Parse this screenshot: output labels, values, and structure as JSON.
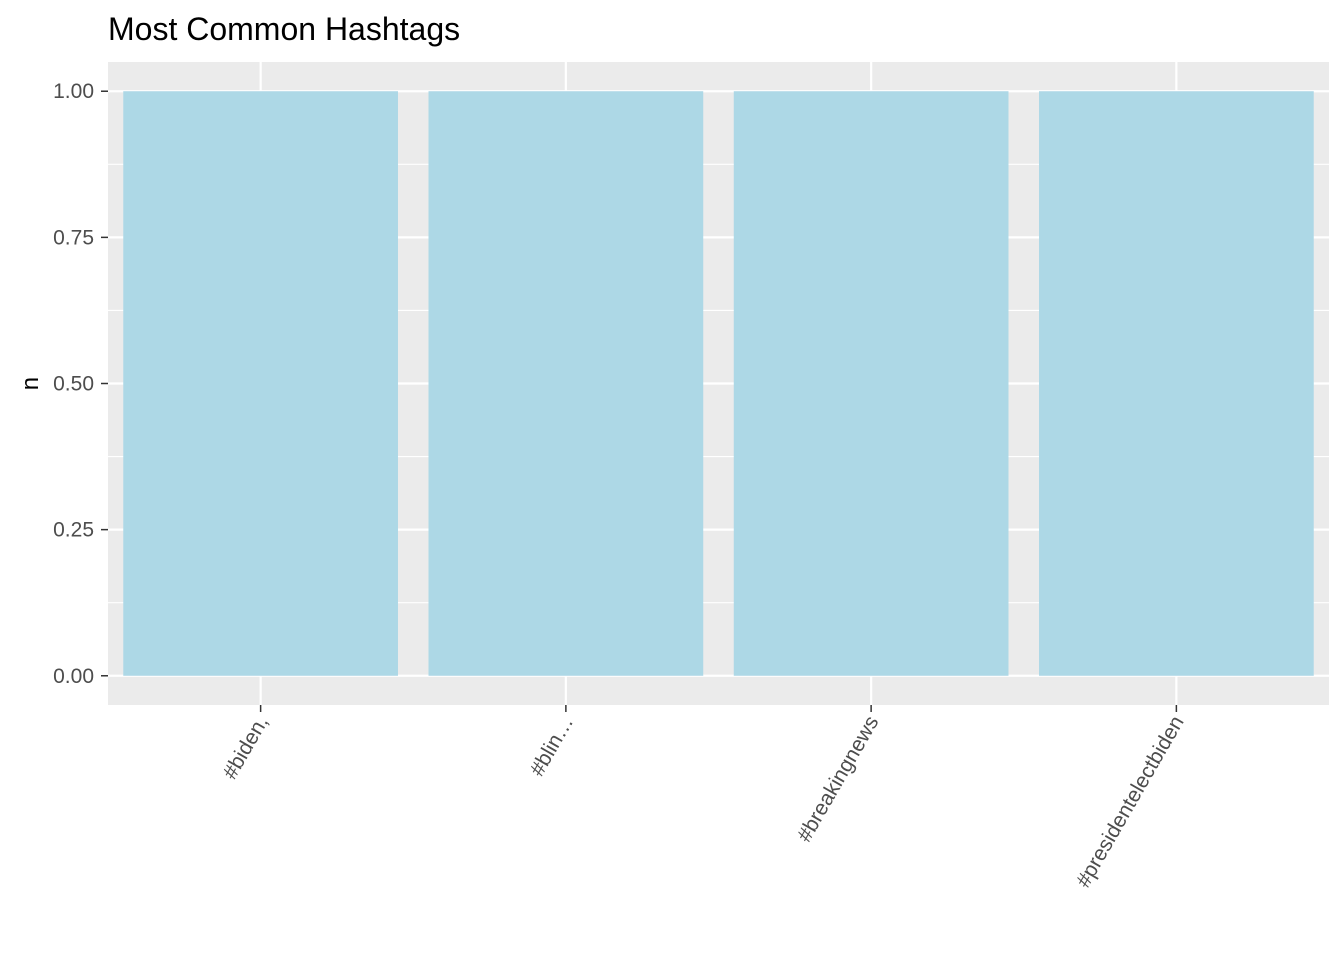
{
  "chart_data": {
    "type": "bar",
    "title": "Most Common Hashtags",
    "xlabel": "",
    "ylabel": "n",
    "categories": [
      "#biden,",
      "#blin…",
      "#breakingnews",
      "#presidentelectbiden"
    ],
    "values": [
      1,
      1,
      1,
      1
    ],
    "ylim": [
      -0.05,
      1.05
    ],
    "yticks": [
      0,
      0.25,
      0.5,
      0.75,
      1
    ],
    "ytick_labels": [
      "0.00",
      "0.25",
      "0.50",
      "0.75",
      "1.00"
    ],
    "grid": true,
    "x_tick_label_rotation": "-60 degrees",
    "colors": {
      "bar_fill": "#add8e6",
      "panel_background": "#ebebeb",
      "gridline": "#ffffff",
      "tick_mark": "#333333",
      "tick_label": "#4d4d4d"
    }
  }
}
